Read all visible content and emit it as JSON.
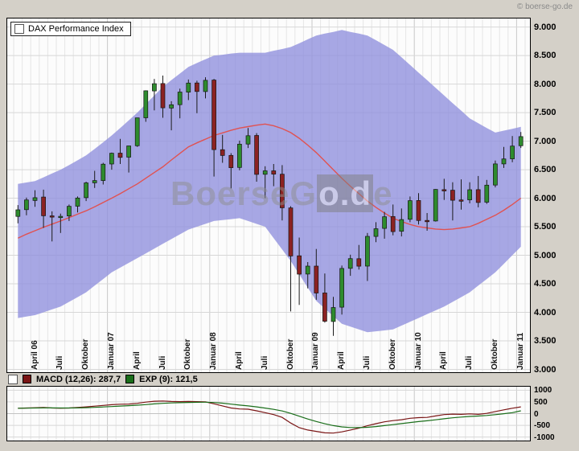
{
  "header": {
    "copyright": "© boerse-go.de"
  },
  "watermark": {
    "part1": "BoerseG",
    "part2": "o.d",
    "part3": "e"
  },
  "main_chart": {
    "legend": "DAX Performance Index"
  },
  "macd_panel": {
    "macd_label": "MACD (12,26): 287,7",
    "exp_label": "EXP (9): 121,5"
  },
  "chart_data": [
    {
      "type": "candlestick",
      "title": "DAX Performance Index",
      "timeframe": "monthly",
      "ylim": [
        3000,
        9000
      ],
      "render_ylim": [
        2950,
        9150
      ],
      "grid": true,
      "y_tick_values": [
        9000,
        8500,
        8000,
        7500,
        7000,
        6500,
        6000,
        5500,
        5000,
        4500,
        4000,
        3500,
        3000
      ],
      "y_tick_labels": [
        "9.000",
        "8.500",
        "8.000",
        "7.500",
        "7.000",
        "6.500",
        "6.000",
        "5.500",
        "5.000",
        "4.500",
        "4.000",
        "3.500",
        "3.000"
      ],
      "x_tick_labels": [
        "April 06",
        "Juli",
        "Oktober",
        "Januar 07",
        "April",
        "Juli",
        "Oktober",
        "Januar 08",
        "April",
        "Juli",
        "Oktober",
        "Januar 09",
        "April",
        "Juli",
        "Oktober",
        "Januar 10",
        "April",
        "Juli",
        "Oktober",
        "Januar 11"
      ],
      "x_tick_month_indices": [
        2,
        5,
        8,
        11,
        14,
        17,
        20,
        23,
        26,
        29,
        32,
        35,
        38,
        41,
        44,
        47,
        50,
        53,
        56,
        59
      ],
      "year_grid_indices": [
        11,
        23,
        35,
        47,
        59
      ],
      "colors": {
        "band": "#9191dd",
        "ma": "#e05252",
        "up": "#2e8b2e",
        "down": "#8b2222"
      },
      "candles": [
        [
          5680,
          5880,
          5560,
          5796
        ],
        [
          5800,
          6010,
          5700,
          5970
        ],
        [
          5960,
          6140,
          5850,
          6009
        ],
        [
          6020,
          6150,
          5480,
          5692
        ],
        [
          5690,
          5770,
          5243,
          5683
        ],
        [
          5680,
          5730,
          5390,
          5682
        ],
        [
          5690,
          5890,
          5600,
          5859
        ],
        [
          5860,
          6030,
          5750,
          6004
        ],
        [
          6010,
          6290,
          5950,
          6269
        ],
        [
          6270,
          6480,
          6180,
          6309
        ],
        [
          6310,
          6620,
          6240,
          6597
        ],
        [
          6600,
          6800,
          6500,
          6789
        ],
        [
          6790,
          7040,
          6600,
          6715
        ],
        [
          6720,
          6920,
          6450,
          6917
        ],
        [
          6920,
          7410,
          6900,
          7409
        ],
        [
          7410,
          7890,
          7340,
          7883
        ],
        [
          7880,
          8090,
          7540,
          8007
        ],
        [
          8010,
          8150,
          7410,
          7584
        ],
        [
          7580,
          7700,
          7190,
          7638
        ],
        [
          7640,
          7920,
          7400,
          7861
        ],
        [
          7860,
          8080,
          7720,
          8019
        ],
        [
          8020,
          8060,
          7490,
          7870
        ],
        [
          7870,
          8120,
          7750,
          8067
        ],
        [
          8070,
          8090,
          6380,
          6851
        ],
        [
          6850,
          7110,
          6620,
          6748
        ],
        [
          6750,
          6790,
          6170,
          6535
        ],
        [
          6540,
          7010,
          6490,
          6948
        ],
        [
          6950,
          7230,
          6880,
          7096
        ],
        [
          7100,
          7140,
          6290,
          6418
        ],
        [
          6420,
          6560,
          6000,
          6480
        ],
        [
          6480,
          6600,
          6210,
          6422
        ],
        [
          6420,
          6580,
          5610,
          5831
        ],
        [
          5830,
          5860,
          4015,
          4988
        ],
        [
          4990,
          5310,
          4130,
          4669
        ],
        [
          4670,
          4880,
          4420,
          4810
        ],
        [
          4810,
          5110,
          4220,
          4338
        ],
        [
          4340,
          4680,
          3820,
          3844
        ],
        [
          3840,
          4270,
          3589,
          4085
        ],
        [
          4090,
          4820,
          3960,
          4769
        ],
        [
          4770,
          5010,
          4640,
          4941
        ],
        [
          4940,
          5180,
          4750,
          4809
        ],
        [
          4810,
          5390,
          4550,
          5332
        ],
        [
          5330,
          5580,
          5230,
          5465
        ],
        [
          5470,
          5760,
          5290,
          5675
        ],
        [
          5680,
          5890,
          5350,
          5415
        ],
        [
          5420,
          5820,
          5330,
          5626
        ],
        [
          5630,
          6030,
          5580,
          5957
        ],
        [
          5960,
          6090,
          5540,
          5609
        ],
        [
          5610,
          5740,
          5430,
          5598
        ],
        [
          5600,
          6160,
          5590,
          6154
        ],
        [
          6150,
          6340,
          5970,
          6136
        ],
        [
          6140,
          6280,
          5610,
          5964
        ],
        [
          5970,
          6330,
          5800,
          5966
        ],
        [
          5970,
          6280,
          5910,
          6148
        ],
        [
          6150,
          6390,
          5840,
          5925
        ],
        [
          5930,
          6320,
          5900,
          6229
        ],
        [
          6230,
          6660,
          6190,
          6601
        ],
        [
          6600,
          6900,
          6530,
          6688
        ],
        [
          6690,
          7090,
          6630,
          6914
        ],
        [
          6920,
          7160,
          6880,
          7080
        ]
      ],
      "band_upper": [
        6250,
        6275,
        6300,
        6365,
        6435,
        6500,
        6580,
        6665,
        6750,
        6865,
        6980,
        7100,
        7230,
        7365,
        7500,
        7650,
        7800,
        7950,
        8070,
        8185,
        8300,
        8370,
        8435,
        8500,
        8515,
        8535,
        8550,
        8550,
        8550,
        8550,
        8585,
        8615,
        8650,
        8715,
        8785,
        8850,
        8885,
        8915,
        8950,
        8915,
        8885,
        8850,
        8770,
        8685,
        8600,
        8470,
        8335,
        8200,
        8070,
        7935,
        7800,
        7665,
        7535,
        7400,
        7315,
        7230,
        7150,
        7185,
        7215,
        7250
      ],
      "band_lower": [
        3900,
        3925,
        3950,
        4000,
        4050,
        4100,
        4183,
        4266,
        4350,
        4467,
        4583,
        4700,
        4783,
        4866,
        4950,
        5033,
        5116,
        5200,
        5283,
        5366,
        5450,
        5500,
        5550,
        5600,
        5617,
        5633,
        5650,
        5600,
        5550,
        5500,
        5300,
        5100,
        4900,
        4667,
        4433,
        4200,
        4067,
        3933,
        3800,
        3750,
        3700,
        3650,
        3667,
        3683,
        3700,
        3767,
        3833,
        3900,
        3967,
        4033,
        4100,
        4183,
        4266,
        4350,
        4467,
        4583,
        4700,
        4850,
        5000,
        5150
      ],
      "ma": [
        5300,
        5370,
        5430,
        5490,
        5545,
        5600,
        5660,
        5720,
        5780,
        5850,
        5925,
        6000,
        6080,
        6165,
        6250,
        6350,
        6450,
        6550,
        6670,
        6785,
        6900,
        6970,
        7035,
        7100,
        7145,
        7190,
        7230,
        7255,
        7280,
        7300,
        7270,
        7220,
        7150,
        7050,
        6930,
        6800,
        6650,
        6500,
        6350,
        6210,
        6080,
        5950,
        5840,
        5740,
        5650,
        5590,
        5540,
        5500,
        5480,
        5460,
        5450,
        5460,
        5480,
        5500,
        5560,
        5630,
        5700,
        5790,
        5890,
        6000
      ]
    },
    {
      "type": "line",
      "title": "MACD",
      "ylim": [
        -1000,
        1000
      ],
      "render_ylim": [
        -1150,
        1150
      ],
      "grid": true,
      "y_tick_values": [
        1000,
        500,
        0,
        -500,
        -1000
      ],
      "y_tick_labels": [
        "1000",
        "500",
        "0",
        "-500",
        "-1000"
      ],
      "last_values": {
        "macd": "287,7",
        "exp": "121,5"
      },
      "series": [
        {
          "id": "macd",
          "name": "MACD (12,26)",
          "color": "#7a1515",
          "values": [
            230,
            240,
            250,
            260,
            240,
            230,
            240,
            260,
            290,
            320,
            350,
            380,
            400,
            410,
            440,
            490,
            530,
            540,
            520,
            510,
            520,
            510,
            500,
            420,
            330,
            240,
            200,
            190,
            120,
            40,
            -40,
            -160,
            -400,
            -600,
            -700,
            -760,
            -820,
            -830,
            -780,
            -700,
            -620,
            -520,
            -430,
            -350,
            -300,
            -260,
            -200,
            -170,
            -160,
            -100,
            -40,
            -20,
            -30,
            -10,
            -30,
            10,
            90,
            160,
            230,
            287.7
          ]
        },
        {
          "id": "exp",
          "name": "EXP (9)",
          "color": "#1a6e1a",
          "values": [
            225,
            232,
            240,
            245,
            245,
            242,
            241,
            245,
            254,
            267,
            284,
            303,
            322,
            340,
            360,
            386,
            415,
            440,
            456,
            467,
            478,
            484,
            487,
            474,
            445,
            404,
            363,
            328,
            287,
            238,
            182,
            114,
            11,
            -111,
            -229,
            -335,
            -432,
            -512,
            -566,
            -593,
            -598,
            -582,
            -552,
            -512,
            -469,
            -427,
            -382,
            -340,
            -304,
            -263,
            -218,
            -178,
            -149,
            -121,
            -103,
            -80,
            -46,
            -5,
            42,
            121.5
          ]
        }
      ]
    }
  ]
}
